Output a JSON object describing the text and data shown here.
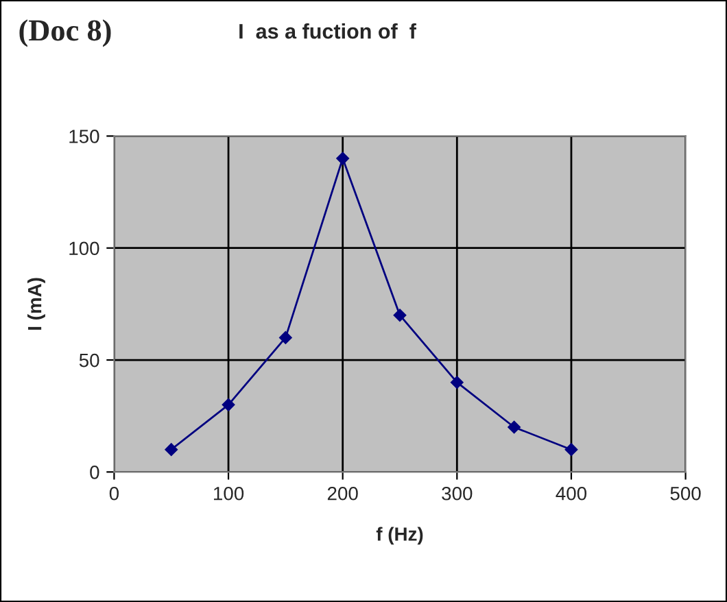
{
  "chart_data": {
    "type": "line",
    "title": "I  as a fuction of  f",
    "annotations": [
      "(Doc 8)"
    ],
    "xlabel": "f (Hz)",
    "ylabel": "I (mA)",
    "x": [
      50,
      100,
      150,
      200,
      250,
      300,
      350,
      400
    ],
    "series": [
      {
        "color": "#000080",
        "values": [
          10,
          30,
          60,
          140,
          70,
          40,
          20,
          10
        ]
      }
    ],
    "xlim": [
      0,
      500
    ],
    "xticks": [
      0,
      100,
      200,
      300,
      400,
      500
    ],
    "ylim": [
      0,
      150
    ],
    "yticks": [
      0,
      50,
      100,
      150
    ],
    "grid": true,
    "marker": "diamond",
    "line_style": "solid"
  }
}
